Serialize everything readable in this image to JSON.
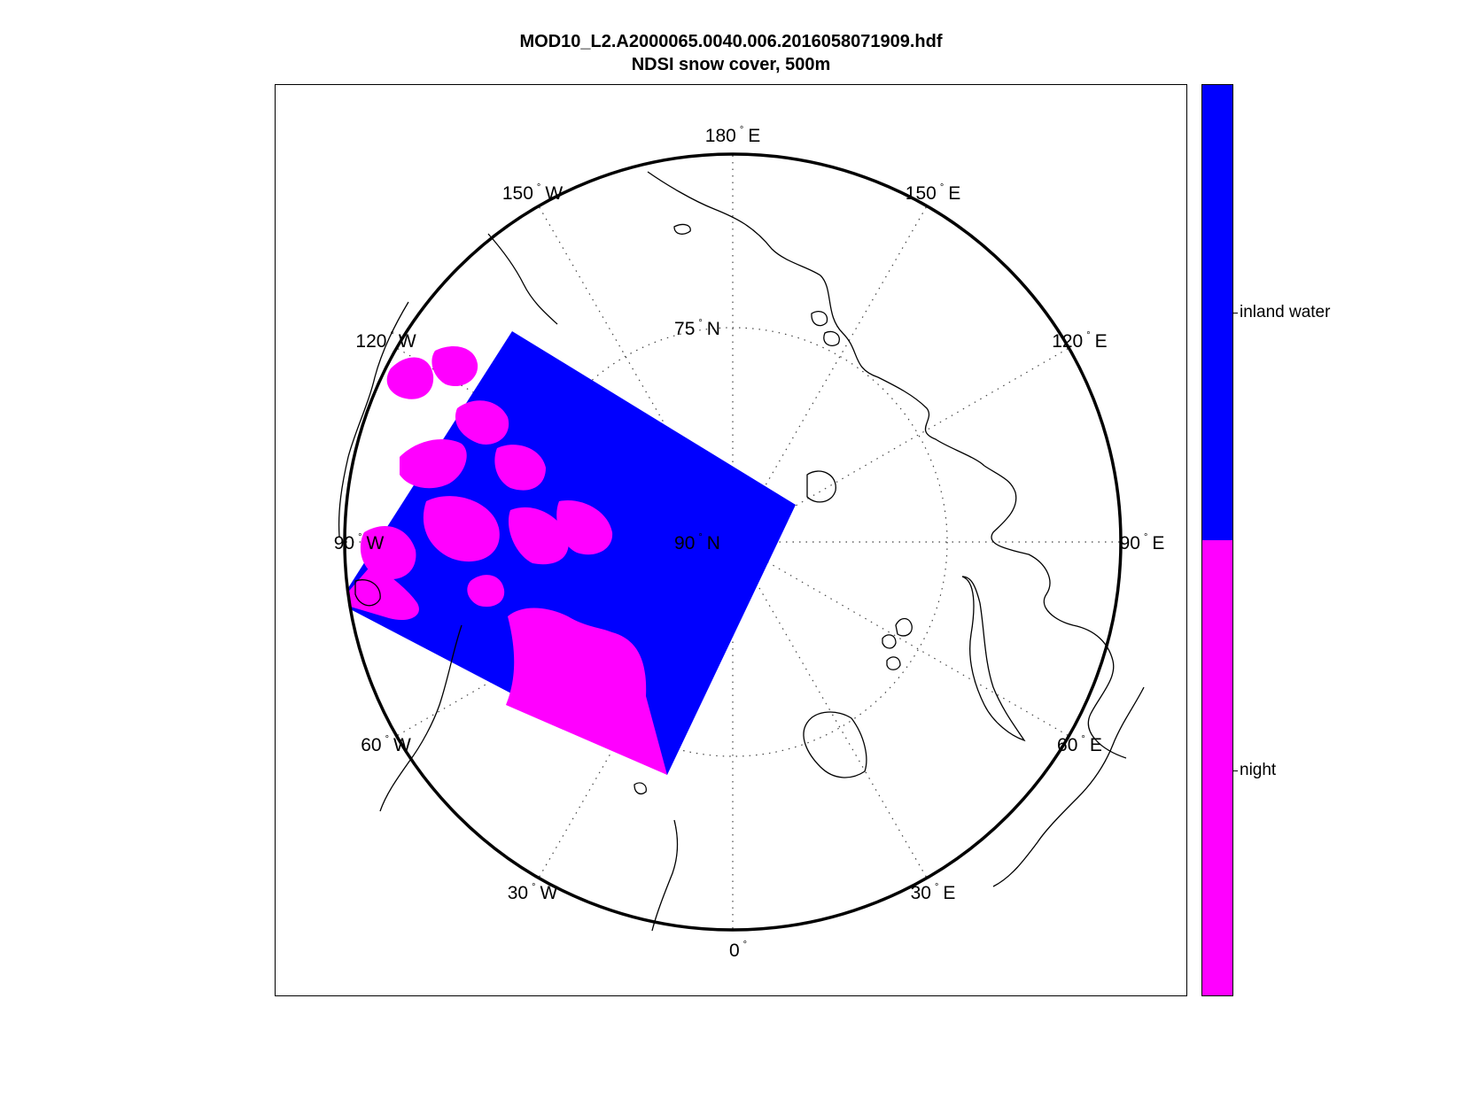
{
  "figure": {
    "title_line1": "MOD10_L2.A2000065.0040.006.2016058071909.hdf",
    "title_line2": "NDSI snow cover, 500m"
  },
  "map": {
    "projection": "north polar stereographic",
    "center": "90° N",
    "latitude_labels": [
      {
        "lat": 90,
        "text": "90",
        "hemi": "N"
      },
      {
        "lat": 75,
        "text": "75",
        "hemi": "N"
      }
    ],
    "longitude_labels": [
      {
        "lon": 180,
        "text": "180",
        "hemi": "E"
      },
      {
        "lon": -150,
        "text": "150",
        "hemi": "W"
      },
      {
        "lon": 150,
        "text": "150",
        "hemi": "E"
      },
      {
        "lon": -120,
        "text": "120",
        "hemi": "W"
      },
      {
        "lon": 120,
        "text": "120",
        "hemi": "E"
      },
      {
        "lon": -90,
        "text": "90",
        "hemi": "W"
      },
      {
        "lon": 90,
        "text": "90",
        "hemi": "E"
      },
      {
        "lon": -60,
        "text": "60",
        "hemi": "W"
      },
      {
        "lon": 60,
        "text": "60",
        "hemi": "E"
      },
      {
        "lon": -30,
        "text": "30",
        "hemi": "W"
      },
      {
        "lon": 30,
        "text": "30",
        "hemi": "E"
      },
      {
        "lon": 0,
        "text": "0",
        "hemi": ""
      }
    ],
    "granule": {
      "water_color": "#0000ff",
      "land_color": "#ff00ff"
    },
    "coastline_color": "#000000",
    "graticule_style": "dotted"
  },
  "colorbar": {
    "categories": [
      {
        "label": "inland water",
        "color": "#0000ff"
      },
      {
        "label": "night",
        "color": "#ff00ff"
      }
    ]
  }
}
